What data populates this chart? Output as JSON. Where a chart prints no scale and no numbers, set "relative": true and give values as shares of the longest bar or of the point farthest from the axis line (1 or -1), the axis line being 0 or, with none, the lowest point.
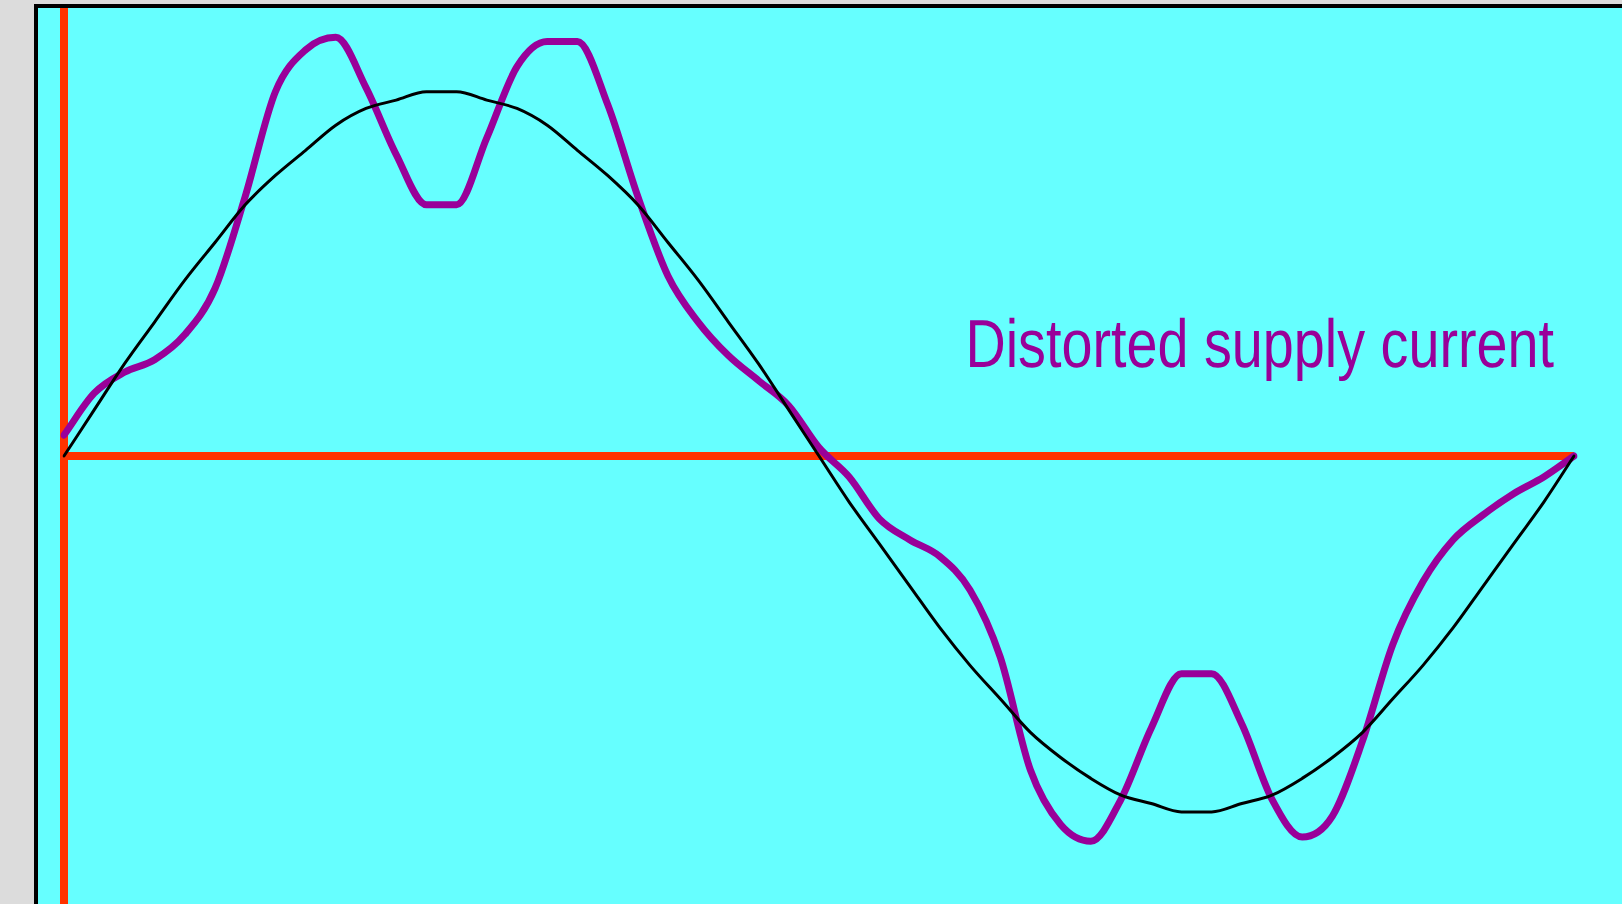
{
  "chart_data": {
    "type": "line",
    "relative": true,
    "grid": false,
    "legend": false,
    "marker": "none",
    "line_style": "solid",
    "annotations": [
      "Distorted supply current"
    ],
    "ref_lines": [
      {
        "axis": "y",
        "value": 0,
        "color": "#ff3300"
      }
    ],
    "categories": [
      null,
      null,
      null,
      null,
      null,
      null,
      null,
      null,
      null,
      null,
      null,
      null,
      null,
      null,
      null,
      null,
      null,
      null,
      null,
      null,
      null,
      null,
      null,
      null,
      null,
      null,
      null,
      null,
      null,
      null,
      null,
      null,
      null,
      null,
      null,
      null,
      null,
      null,
      null,
      null,
      null,
      null,
      null,
      null,
      null,
      null,
      null,
      null,
      null,
      null,
      null
    ],
    "series": [
      {
        "color": "#000000",
        "values": [
          0,
          0.11,
          0.22,
          0.32,
          0.42,
          0.51,
          0.6,
          0.67,
          0.73,
          0.79,
          0.83,
          0.85,
          0.87,
          0.87,
          0.85,
          0.83,
          0.79,
          0.73,
          0.67,
          0.6,
          0.51,
          0.42,
          0.32,
          0.22,
          0.11,
          0,
          -0.11,
          -0.21,
          -0.31,
          -0.41,
          -0.5,
          -0.58,
          -0.66,
          -0.72,
          -0.77,
          -0.81,
          -0.83,
          -0.85,
          -0.85,
          -0.83,
          -0.81,
          -0.77,
          -0.72,
          -0.66,
          -0.58,
          -0.5,
          -0.41,
          -0.31,
          -0.21,
          -0.11,
          0
        ]
      },
      {
        "color": "#990099",
        "values": [
          0.05,
          0.15,
          0.2,
          0.23,
          0.29,
          0.4,
          0.62,
          0.87,
          0.97,
          1,
          0.88,
          0.72,
          0.6,
          0.6,
          0.76,
          0.93,
          0.99,
          0.99,
          0.84,
          0.62,
          0.43,
          0.32,
          0.24,
          0.18,
          0.12,
          0.02,
          -0.05,
          -0.15,
          -0.2,
          -0.24,
          -0.32,
          -0.48,
          -0.75,
          -0.88,
          -0.92,
          -0.82,
          -0.65,
          -0.52,
          -0.52,
          -0.64,
          -0.82,
          -0.91,
          -0.86,
          -0.68,
          -0.45,
          -0.3,
          -0.2,
          -0.14,
          -0.09,
          -0.05,
          0
        ]
      }
    ]
  }
}
